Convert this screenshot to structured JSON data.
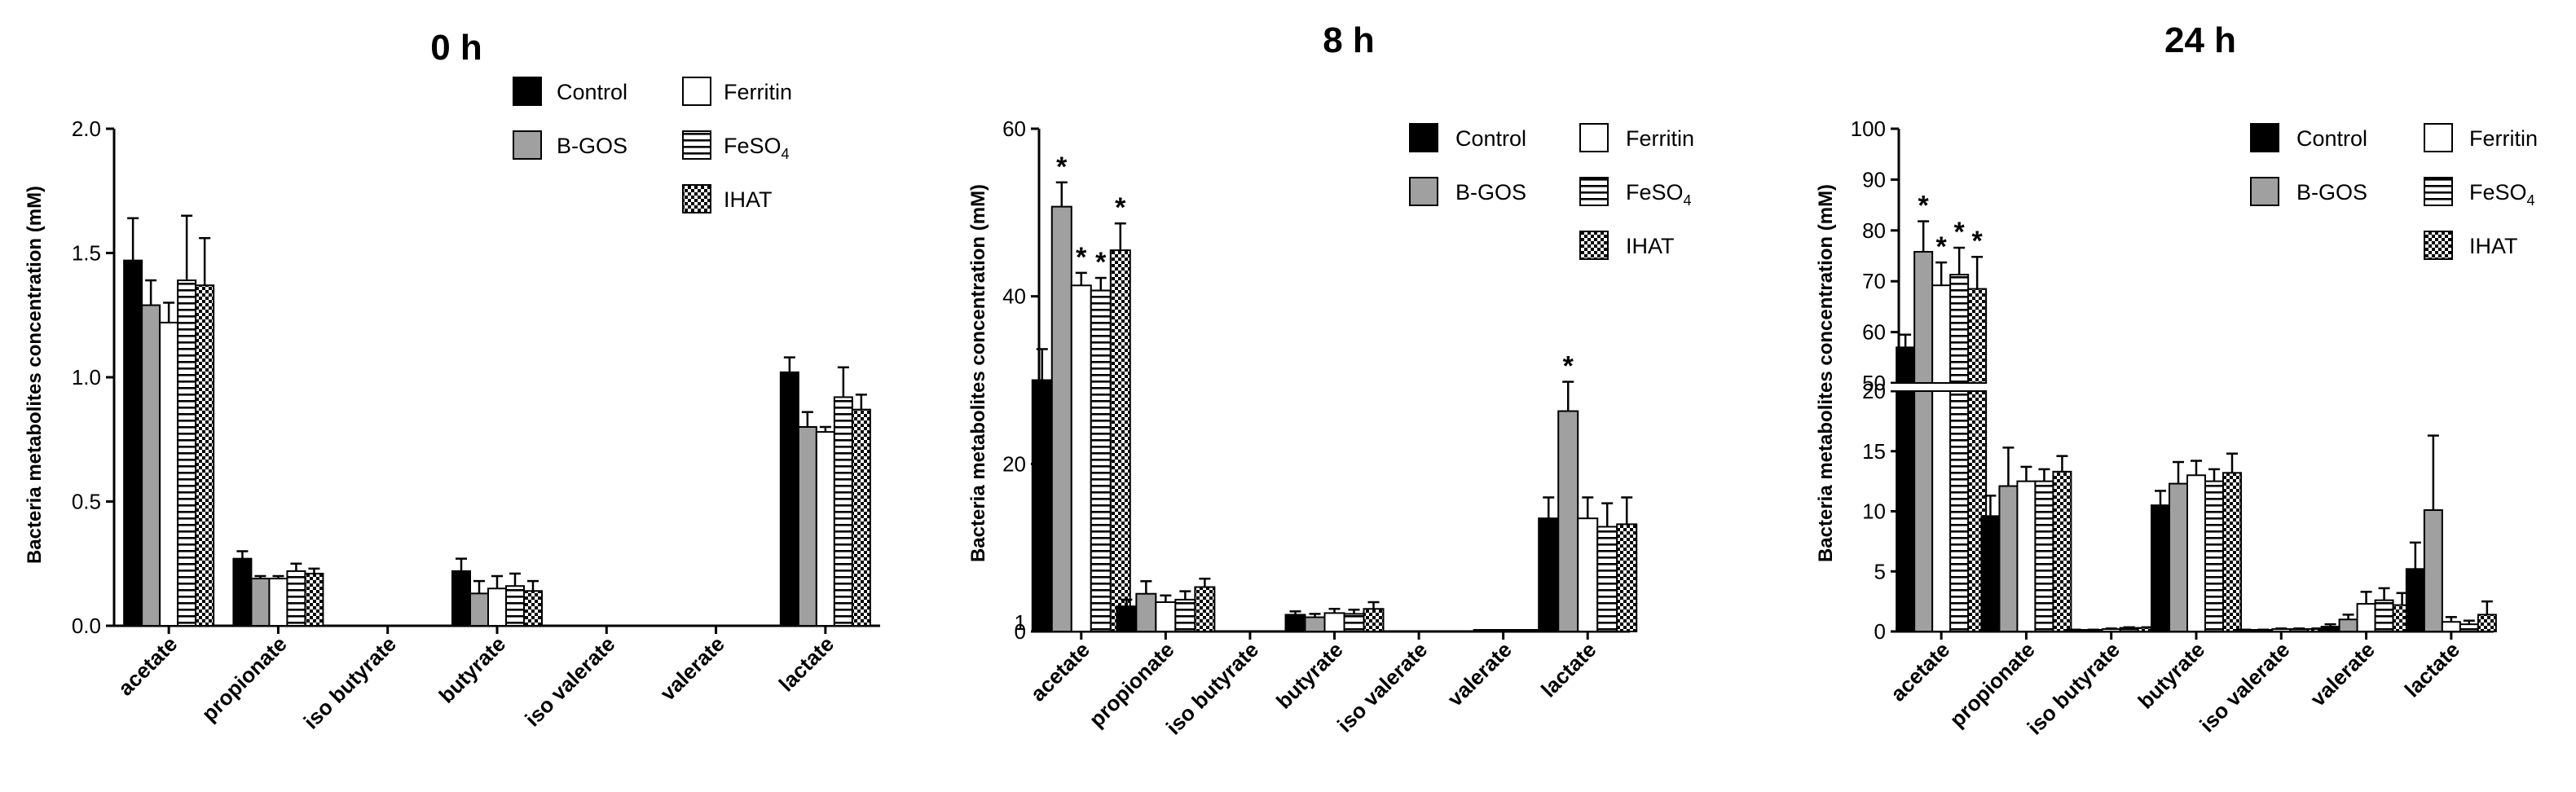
{
  "colors": {
    "control": "#000000",
    "bgos": "#a0a0a0",
    "ferritin": "#ffffff",
    "stroke": "#000000"
  },
  "chart_data": [
    {
      "type": "bar",
      "title": "0 h",
      "ylabel": "Bacteria metabolites concentration (mM)",
      "xlabel": "",
      "categories": [
        "acetate",
        "propionate",
        "iso butyrate",
        "butyrate",
        "iso valerate",
        "valerate",
        "lactate"
      ],
      "ylim": [
        0,
        2.0
      ],
      "yticks": [
        0.0,
        0.5,
        1.0,
        1.5,
        2.0
      ],
      "ytick_labels": [
        "0.0",
        "0.5",
        "1.0",
        "1.5",
        "2.0"
      ],
      "axis_break": null,
      "series": [
        {
          "name": "Control",
          "pattern": "solid-black",
          "values": [
            1.47,
            0.27,
            0,
            0.22,
            0,
            0,
            1.02
          ],
          "errors": [
            0.17,
            0.03,
            0,
            0.05,
            0,
            0,
            0.06
          ]
        },
        {
          "name": "B-GOS",
          "pattern": "solid-grey",
          "values": [
            1.29,
            0.19,
            0,
            0.13,
            0,
            0,
            0.8
          ],
          "errors": [
            0.1,
            0.01,
            0,
            0.05,
            0,
            0,
            0.06
          ]
        },
        {
          "name": "Ferritin",
          "pattern": "open",
          "values": [
            1.22,
            0.19,
            0,
            0.15,
            0,
            0,
            0.78
          ],
          "errors": [
            0.08,
            0.01,
            0,
            0.05,
            0,
            0.01,
            0.02
          ]
        },
        {
          "name": "FeSO",
          "name_sub": "4",
          "pattern": "horizontal-lines",
          "values": [
            1.39,
            0.22,
            0,
            0.16,
            0,
            0,
            0.92
          ],
          "errors": [
            0.26,
            0.03,
            0,
            0.05,
            0,
            0,
            0.12
          ]
        },
        {
          "name": "IHAT",
          "pattern": "checker",
          "values": [
            1.37,
            0.21,
            0,
            0.14,
            0,
            0,
            0.87
          ],
          "errors": [
            0.19,
            0.02,
            0,
            0.04,
            0,
            0,
            0.06
          ]
        }
      ],
      "annotations": []
    },
    {
      "type": "bar",
      "title": "8 h",
      "ylabel": "Bacteria metabolites concentration (mM)",
      "xlabel": "",
      "categories": [
        "acetate",
        "propionate",
        "iso butyrate",
        "butyrate",
        "iso valerate",
        "valerate",
        "lactate"
      ],
      "ylim": [
        0,
        60
      ],
      "yticks": [
        0,
        20,
        40,
        60
      ],
      "ytick_labels": [
        "0",
        "20",
        "40",
        "60"
      ],
      "extra_ytick_label": "1",
      "axis_break": null,
      "series": [
        {
          "name": "Control",
          "pattern": "solid-black",
          "values": [
            30,
            3,
            0,
            2,
            0,
            0,
            13.5
          ],
          "errors": [
            3.7,
            0.8,
            0,
            0.4,
            0,
            0,
            2.5
          ]
        },
        {
          "name": "B-GOS",
          "pattern": "solid-grey",
          "values": [
            50.7,
            4.5,
            0,
            1.7,
            0,
            0.1,
            26.3
          ],
          "errors": [
            2.9,
            1.5,
            0,
            0.4,
            0,
            0.05,
            3.5
          ]
        },
        {
          "name": "Ferritin",
          "pattern": "open",
          "values": [
            41.3,
            3.5,
            0,
            2.2,
            0,
            0.1,
            13.5
          ],
          "errors": [
            1.5,
            0.8,
            0,
            0.5,
            0,
            0.05,
            2.5
          ]
        },
        {
          "name": "FeSO",
          "name_sub": "4",
          "pattern": "horizontal-lines",
          "values": [
            40.7,
            3.8,
            0,
            2.1,
            0,
            0.1,
            12.5
          ],
          "errors": [
            1.5,
            1.0,
            0,
            0.5,
            0,
            0.05,
            2.8
          ]
        },
        {
          "name": "IHAT",
          "pattern": "checker",
          "values": [
            45.5,
            5.3,
            0,
            2.7,
            0,
            0.1,
            12.8
          ],
          "errors": [
            3.2,
            1.0,
            0,
            0.8,
            0,
            0.05,
            3.2
          ]
        }
      ],
      "annotations": [
        {
          "text": "*",
          "category": "acetate",
          "series": "B-GOS"
        },
        {
          "text": "*",
          "category": "acetate",
          "series": "Ferritin"
        },
        {
          "text": "*",
          "category": "acetate",
          "series": "FeSO"
        },
        {
          "text": "*",
          "category": "acetate",
          "series": "IHAT"
        },
        {
          "text": "*",
          "category": "lactate",
          "series": "B-GOS"
        }
      ]
    },
    {
      "type": "bar",
      "title": "24 h",
      "ylabel": "Bacteria metabolites concentration (mM)",
      "xlabel": "",
      "categories": [
        "acetate",
        "propionate",
        "iso butyrate",
        "butyrate",
        "iso valerate",
        "valerate",
        "lactate"
      ],
      "ylim": [
        0,
        100
      ],
      "yticks": [
        0,
        5,
        10,
        15,
        20,
        50,
        60,
        70,
        80,
        90,
        100
      ],
      "ytick_labels": [
        "0",
        "5",
        "10",
        "15",
        "20",
        "50",
        "60",
        "70",
        "80",
        "90",
        "100"
      ],
      "axis_break": {
        "lower": [
          0,
          20
        ],
        "upper": [
          50,
          100
        ]
      },
      "series": [
        {
          "name": "Control",
          "pattern": "solid-black",
          "values": [
            57,
            9.6,
            0.1,
            10.5,
            0.1,
            0.4,
            5.2
          ],
          "errors": [
            2.5,
            1.7,
            0.05,
            1.2,
            0.05,
            0.2,
            2.2
          ]
        },
        {
          "name": "B-GOS",
          "pattern": "solid-grey",
          "values": [
            75.8,
            12.1,
            0.1,
            12.3,
            0.1,
            1.0,
            10.1
          ],
          "errors": [
            6.0,
            3.2,
            0.05,
            1.8,
            0.05,
            0.4,
            6.2
          ]
        },
        {
          "name": "Ferritin",
          "pattern": "open",
          "values": [
            69.2,
            12.5,
            0.2,
            13.0,
            0.2,
            2.3,
            0.8
          ],
          "errors": [
            4.5,
            1.2,
            0.05,
            1.2,
            0.05,
            1.0,
            0.4
          ]
        },
        {
          "name": "FeSO",
          "name_sub": "4",
          "pattern": "horizontal-lines",
          "values": [
            71.3,
            12.5,
            0.3,
            12.5,
            0.2,
            2.6,
            0.6
          ],
          "errors": [
            5.3,
            1.0,
            0.05,
            1.0,
            0.05,
            1.0,
            0.3
          ]
        },
        {
          "name": "IHAT",
          "pattern": "checker",
          "values": [
            68.5,
            13.3,
            0.3,
            13.2,
            0.2,
            2.2,
            1.4
          ],
          "errors": [
            6.3,
            1.3,
            0.05,
            1.6,
            0.05,
            1.0,
            1.1
          ]
        }
      ],
      "annotations": [
        {
          "text": "*",
          "category": "acetate",
          "series": "B-GOS"
        },
        {
          "text": "*",
          "category": "acetate",
          "series": "Ferritin"
        },
        {
          "text": "*",
          "category": "acetate",
          "series": "FeSO"
        },
        {
          "text": "*",
          "category": "acetate",
          "series": "IHAT"
        }
      ]
    }
  ]
}
